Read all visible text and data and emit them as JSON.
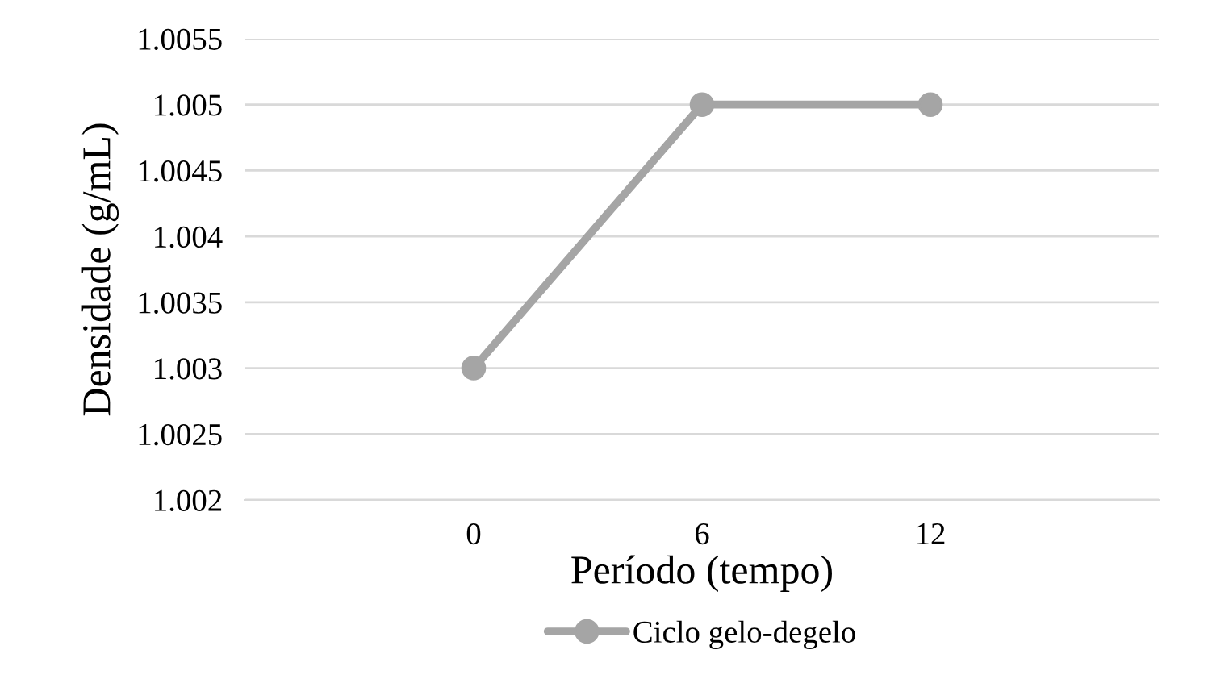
{
  "chart_data": {
    "type": "line",
    "xlabel": "Período (tempo)",
    "ylabel": "Densidade (g/mL)",
    "categories": [
      "0",
      "6",
      "12"
    ],
    "series": [
      {
        "name": "Ciclo gelo-degelo",
        "color": "#a5a5a5",
        "values": [
          1.003,
          1.005,
          1.005
        ]
      }
    ],
    "ylim": [
      1.002,
      1.0055
    ],
    "yticks": [
      1.002,
      1.0025,
      1.003,
      1.0035,
      1.004,
      1.0045,
      1.005,
      1.0055
    ],
    "grid": "y",
    "legend": "bottom",
    "marker": "circle",
    "line_style": "solid"
  }
}
